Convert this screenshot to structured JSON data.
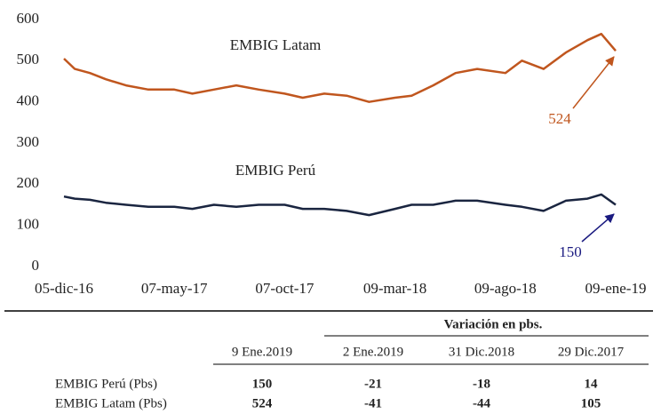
{
  "chart_data": {
    "type": "line",
    "x": [
      "2016-12-05",
      "2016-12-20",
      "2017-01-10",
      "2017-02-01",
      "2017-03-01",
      "2017-04-01",
      "2017-05-07",
      "2017-06-01",
      "2017-07-01",
      "2017-08-01",
      "2017-09-01",
      "2017-10-07",
      "2017-11-01",
      "2017-12-01",
      "2018-01-01",
      "2018-02-01",
      "2018-03-09",
      "2018-04-01",
      "2018-05-01",
      "2018-06-01",
      "2018-07-01",
      "2018-08-09",
      "2018-09-01",
      "2018-10-01",
      "2018-11-01",
      "2018-12-01",
      "2018-12-20",
      "2019-01-09"
    ],
    "series": [
      {
        "name": "EMBIG Latam",
        "color": "#c0561e",
        "values": [
          505,
          480,
          470,
          455,
          440,
          430,
          430,
          420,
          430,
          440,
          430,
          420,
          410,
          420,
          415,
          400,
          410,
          415,
          440,
          470,
          480,
          470,
          500,
          480,
          520,
          550,
          565,
          524
        ]
      },
      {
        "name": "EMBIG Perú",
        "color": "#1a2540",
        "values": [
          170,
          165,
          162,
          155,
          150,
          145,
          145,
          140,
          150,
          145,
          150,
          150,
          140,
          140,
          135,
          125,
          140,
          150,
          150,
          160,
          160,
          150,
          145,
          135,
          160,
          165,
          175,
          150
        ]
      }
    ],
    "annotations": [
      {
        "text": "524",
        "series": 0
      },
      {
        "text": "150",
        "series": 1
      }
    ],
    "xlim": [
      "2016-12-05",
      "2019-01-09"
    ],
    "xticks": [
      {
        "value": "2016-12-05",
        "label": "05-dic-16"
      },
      {
        "value": "2017-05-07",
        "label": "07-may-17"
      },
      {
        "value": "2017-10-07",
        "label": "07-oct-17"
      },
      {
        "value": "2018-03-09",
        "label": "09-mar-18"
      },
      {
        "value": "2018-08-09",
        "label": "09-ago-18"
      },
      {
        "value": "2019-01-09",
        "label": "09-ene-19"
      }
    ],
    "ylim": [
      0,
      600
    ],
    "yticks": [
      0,
      100,
      200,
      300,
      400,
      500,
      600
    ],
    "grid": false
  },
  "table": {
    "header": "Variación en pbs.",
    "columns": [
      "9 Ene.2019",
      "2 Ene.2019",
      "31 Dic.2018",
      "29 Dic.2017"
    ],
    "rows": [
      {
        "label": "EMBIG Perú (Pbs)",
        "values": [
          150,
          -21,
          -18,
          14
        ]
      },
      {
        "label": "EMBIG Latam (Pbs)",
        "values": [
          524,
          -41,
          -44,
          105
        ]
      }
    ]
  }
}
